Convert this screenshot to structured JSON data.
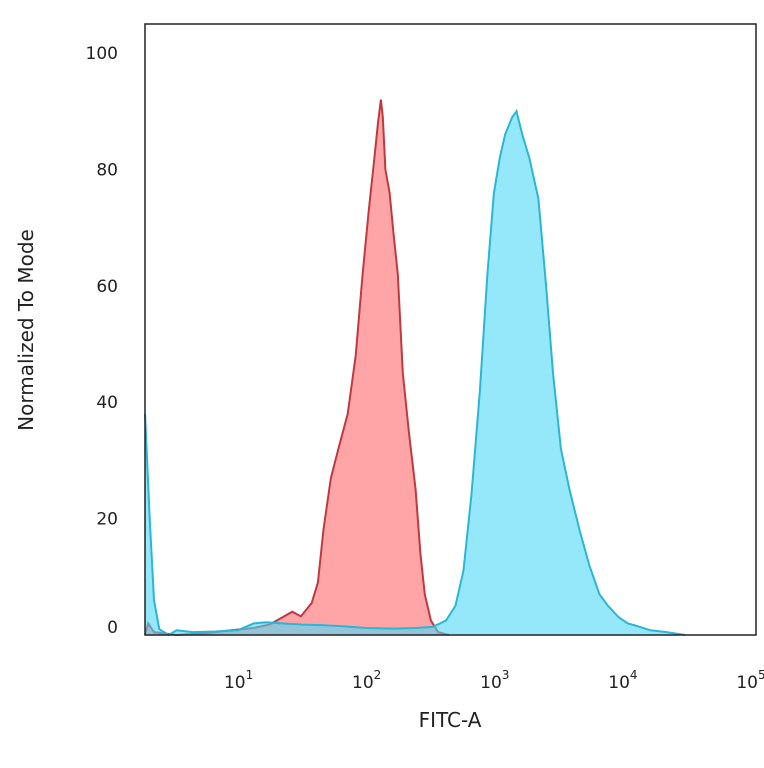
{
  "chart_data": {
    "type": "area",
    "title": "",
    "xlabel": "FITC-A",
    "ylabel": "Normalized To Mode",
    "x_scale": "log",
    "xlim": [
      1.7,
      100000
    ],
    "ylim": [
      0,
      105
    ],
    "grid": false,
    "legend": "none",
    "x_ticks": [
      {
        "value": 10,
        "base": "10",
        "exp": "1"
      },
      {
        "value": 100,
        "base": "10",
        "exp": "2"
      },
      {
        "value": 1000,
        "base": "10",
        "exp": "3"
      },
      {
        "value": 10000,
        "base": "10",
        "exp": "4"
      },
      {
        "value": 100000,
        "base": "10",
        "exp": "5"
      }
    ],
    "y_ticks": [
      {
        "value": 0,
        "label": "0"
      },
      {
        "value": 20,
        "label": "20"
      },
      {
        "value": 40,
        "label": "40"
      },
      {
        "value": 60,
        "label": "60"
      },
      {
        "value": 80,
        "label": "80"
      },
      {
        "value": 100,
        "label": "100"
      }
    ],
    "series": [
      {
        "color": "#ff7f82",
        "stroke": "#c0393f",
        "fill_opacity": 0.7,
        "points": [
          [
            1.7,
            0
          ],
          [
            1.8,
            2
          ],
          [
            2,
            0.5
          ],
          [
            3,
            0
          ],
          [
            5,
            0.3
          ],
          [
            8,
            0.8
          ],
          [
            12,
            1.2
          ],
          [
            16,
            1.8
          ],
          [
            20,
            3
          ],
          [
            24,
            4
          ],
          [
            28,
            3.2
          ],
          [
            34,
            5.5
          ],
          [
            38,
            9
          ],
          [
            42,
            18
          ],
          [
            48,
            27
          ],
          [
            55,
            32
          ],
          [
            65,
            38
          ],
          [
            75,
            48
          ],
          [
            85,
            62
          ],
          [
            95,
            73
          ],
          [
            105,
            82
          ],
          [
            112,
            88
          ],
          [
            118,
            92
          ],
          [
            122,
            89
          ],
          [
            128,
            80
          ],
          [
            138,
            76
          ],
          [
            148,
            69
          ],
          [
            160,
            62
          ],
          [
            175,
            45
          ],
          [
            195,
            35
          ],
          [
            220,
            25
          ],
          [
            240,
            14
          ],
          [
            260,
            7
          ],
          [
            290,
            2.5
          ],
          [
            330,
            0.5
          ],
          [
            400,
            0
          ]
        ]
      },
      {
        "color": "#4dd8f7",
        "stroke": "#2bb5d7",
        "fill_opacity": 0.6,
        "points": [
          [
            1.7,
            38
          ],
          [
            1.75,
            32
          ],
          [
            1.85,
            20
          ],
          [
            2.0,
            6
          ],
          [
            2.2,
            1
          ],
          [
            2.6,
            0
          ],
          [
            3,
            0.8
          ],
          [
            4,
            0.5
          ],
          [
            6,
            0.6
          ],
          [
            9,
            0.8
          ],
          [
            12,
            2
          ],
          [
            15,
            2.2
          ],
          [
            20,
            2
          ],
          [
            28,
            1.8
          ],
          [
            40,
            1.7
          ],
          [
            60,
            1.5
          ],
          [
            90,
            1.2
          ],
          [
            150,
            1.1
          ],
          [
            220,
            1.2
          ],
          [
            300,
            1.4
          ],
          [
            380,
            2.5
          ],
          [
            450,
            5
          ],
          [
            520,
            11
          ],
          [
            600,
            24
          ],
          [
            700,
            42
          ],
          [
            800,
            62
          ],
          [
            900,
            76
          ],
          [
            1000,
            82
          ],
          [
            1100,
            86
          ],
          [
            1250,
            89
          ],
          [
            1350,
            90
          ],
          [
            1500,
            86
          ],
          [
            1700,
            82
          ],
          [
            2000,
            75
          ],
          [
            2300,
            60
          ],
          [
            2600,
            45
          ],
          [
            3000,
            32
          ],
          [
            3500,
            25
          ],
          [
            4200,
            18
          ],
          [
            5000,
            12
          ],
          [
            6000,
            7
          ],
          [
            7000,
            5
          ],
          [
            8500,
            3
          ],
          [
            10000,
            2
          ],
          [
            12000,
            1.5
          ],
          [
            15000,
            0.8
          ],
          [
            20000,
            0.5
          ],
          [
            28000,
            0
          ]
        ]
      }
    ]
  }
}
